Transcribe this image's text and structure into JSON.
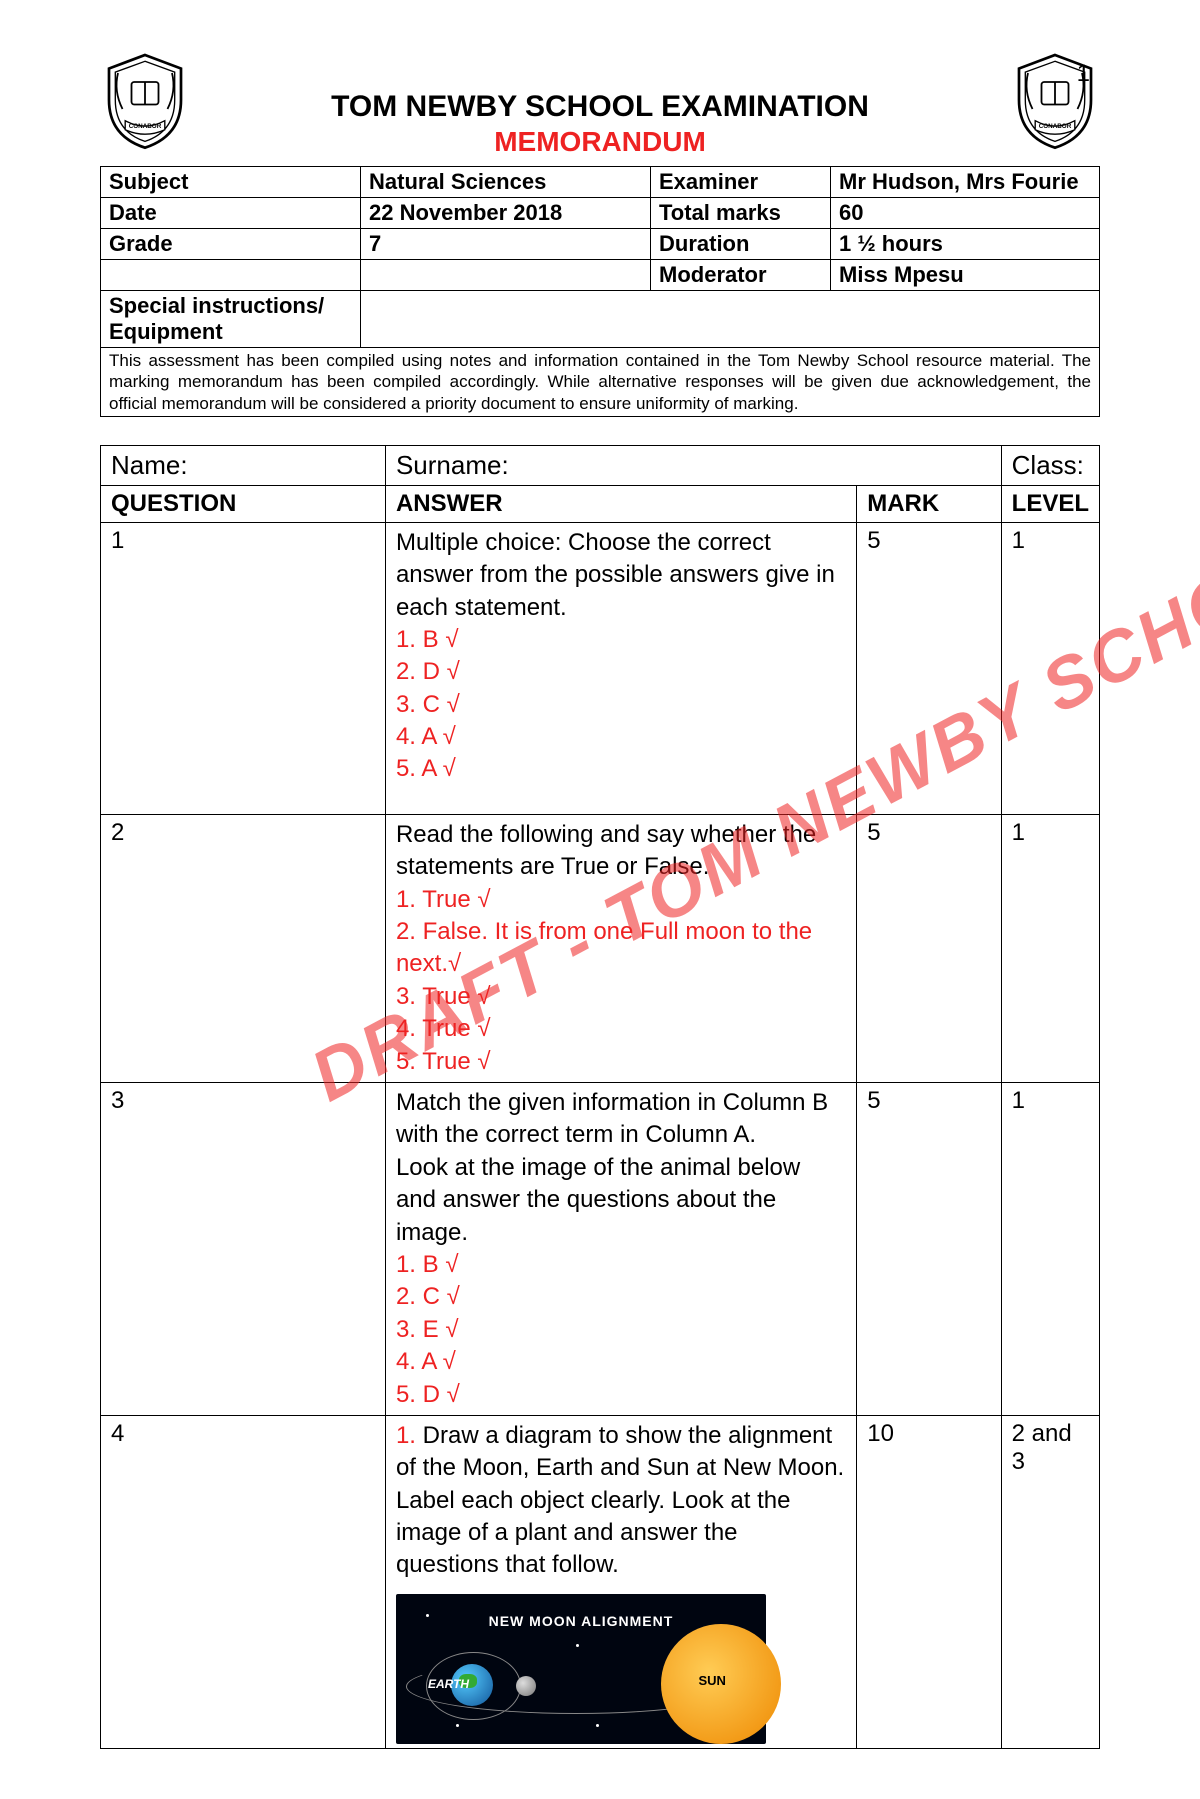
{
  "page_number": "1",
  "header": {
    "title": "TOM NEWBY SCHOOL EXAMINATION",
    "subtitle": "MEMORANDUM",
    "title_color": "#000000",
    "subtitle_color": "#ee2222"
  },
  "info": {
    "labels": {
      "subject": "Subject",
      "date": "Date",
      "grade": "Grade",
      "examiner": "Examiner",
      "total_marks": "Total marks",
      "duration": "Duration",
      "moderator": "Moderator",
      "special": "Special instructions/ Equipment"
    },
    "values": {
      "subject": "Natural Sciences",
      "date": "22 November 2018",
      "grade": "7",
      "examiner": "Mr Hudson, Mrs Fourie",
      "total_marks": "60",
      "duration": "1 ½ hours",
      "moderator": "Miss Mpesu"
    }
  },
  "disclaimer": "This assessment has been compiled using notes and information contained in the Tom Newby School resource material. The marking memorandum has been compiled accordingly.  While alternative responses will be given due acknowledgement, the official memorandum will be considered a priority document to ensure uniformity of marking.",
  "name_row": {
    "name": "Name:",
    "surname": "Surname:",
    "class": "Class:"
  },
  "columns": {
    "question": "QUESTION",
    "answer": "ANSWER",
    "mark": "MARK",
    "level": "LEVEL"
  },
  "watermark": "DRAFT - TOM NEWBY SCHOOL",
  "questions": [
    {
      "num": "1",
      "intro": "Multiple choice: Choose the correct answer from the possible answers give in each statement.",
      "answers": [
        "1. B √",
        "2. D √",
        "3. C √",
        "4. A √",
        "5. A √"
      ],
      "mark": "5",
      "level": "1"
    },
    {
      "num": "2",
      "intro": "Read the following and say whether the statements are True or False.",
      "answers": [
        "1. True √",
        "2. False. It is from one Full moon to the next.√",
        "3. True √",
        "4. True √",
        "5. True √"
      ],
      "mark": "5",
      "level": "1"
    },
    {
      "num": "3",
      "intro": "Match the given information in Column B with the correct term in Column A.\nLook at the image of the animal below and answer the questions about the image.",
      "answers": [
        "1. B √",
        "2. C √",
        "3. E √",
        "4. A √",
        "5. D √"
      ],
      "mark": "5",
      "level": "1"
    },
    {
      "num": "4",
      "intro_red_prefix": "1. ",
      "intro": "Draw a diagram to show the alignment of the Moon, Earth and Sun at New Moon. Label each object clearly. Look at the image of a plant and answer the questions that follow.",
      "answers": [],
      "mark": "10",
      "level": "2 and 3",
      "has_diagram": true,
      "diagram": {
        "title": "NEW MOON ALIGNMENT",
        "sun_label": "SUN",
        "earth_label": "EARTH"
      }
    }
  ],
  "colors": {
    "answer_red": "#ee2222",
    "text": "#000000",
    "border": "#000000"
  }
}
